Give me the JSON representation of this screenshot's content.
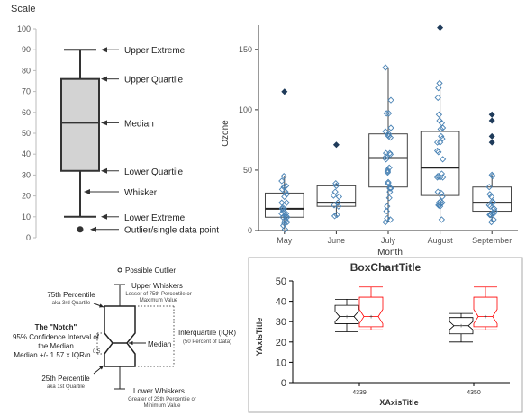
{
  "chart_data": [
    {
      "type": "box",
      "panel": "top-left",
      "title": "Scale",
      "ylim": [
        0,
        100
      ],
      "yticks": [
        0,
        10,
        20,
        30,
        40,
        50,
        60,
        70,
        80,
        90,
        100
      ],
      "box": {
        "min": 10,
        "q1": 32,
        "median": 55,
        "q3": 76,
        "max": 90,
        "outlier": 4
      },
      "annotations": [
        {
          "label": "Upper Extreme",
          "y": 90
        },
        {
          "label": "Upper Quartile",
          "y": 76
        },
        {
          "label": "Median",
          "y": 55
        },
        {
          "label": "Lower Quartile",
          "y": 32
        },
        {
          "label": "Whisker",
          "y": 22
        },
        {
          "label": "Lower Extreme",
          "y": 10
        },
        {
          "label": "Outlier/single data point",
          "y": 4
        }
      ]
    },
    {
      "type": "box",
      "panel": "top-right",
      "xlabel": "Month",
      "ylabel": "Ozone",
      "ylim": [
        0,
        170
      ],
      "yticks": [
        0,
        50,
        100,
        150
      ],
      "categories": [
        "May",
        "June",
        "July",
        "August",
        "September"
      ],
      "boxes": [
        {
          "min": 1,
          "q1": 11,
          "median": 18,
          "q3": 31,
          "max": 45,
          "outliers": [
            115
          ]
        },
        {
          "min": 12,
          "q1": 20,
          "median": 23,
          "q3": 37,
          "max": 39,
          "outliers": [
            71
          ]
        },
        {
          "min": 7,
          "q1": 36,
          "median": 60,
          "q3": 80,
          "max": 135,
          "outliers": []
        },
        {
          "min": 9,
          "q1": 29,
          "median": 52,
          "q3": 82,
          "max": 122,
          "outliers": [
            168
          ]
        },
        {
          "min": 7,
          "q1": 16,
          "median": 23,
          "q3": 36,
          "max": 46,
          "outliers": [
            96,
            78,
            73,
            91
          ]
        }
      ],
      "points": [
        [
          41,
          36,
          12,
          18,
          28,
          23,
          19,
          8,
          7,
          16,
          11,
          14,
          18,
          14,
          34,
          6,
          30,
          11,
          1,
          11,
          4,
          32,
          23,
          45,
          37
        ],
        [
          29,
          39,
          23,
          21,
          37,
          20,
          12,
          13,
          28,
          32
        ],
        [
          135,
          49,
          32,
          64,
          40,
          77,
          97,
          97,
          85,
          10,
          27,
          7,
          48,
          35,
          61,
          79,
          63,
          16,
          80,
          108,
          20,
          52,
          82,
          50,
          64,
          59,
          39,
          9,
          16,
          78,
          35
        ],
        [
          66,
          122,
          89,
          110,
          44,
          28,
          65,
          22,
          59,
          23,
          31,
          44,
          21,
          9,
          45,
          73,
          76,
          118,
          84,
          85,
          96,
          78,
          73,
          91,
          47,
          32,
          20,
          23,
          21,
          24,
          44
        ],
        [
          21,
          28,
          9,
          13,
          46,
          18,
          13,
          24,
          16,
          13,
          23,
          36,
          7,
          14,
          30,
          14,
          18,
          20,
          45
        ]
      ]
    },
    {
      "type": "box",
      "panel": "bottom-left",
      "annotations": {
        "outlier": "Possible Outlier",
        "upper_whiskers": "Upper Whiskers",
        "upper_whiskers_sub": "Lesser of 75th Percentile or Maximum Value",
        "p75": "75th Percentile",
        "p75_sub": "aka 3rd Quartile",
        "notch_title": "The \"Notch\"",
        "notch_1": "95% Confidence Interval of",
        "notch_2": "the Median",
        "notch_3": "Median +/- 1.57 x IQR/n",
        "notch_exp": "0.5",
        "median": "Median",
        "iqr": "Interquartile (IQR)",
        "iqr_sub": "(50 Percent of Data)",
        "p25": "25th Percentile",
        "p25_sub": "aka 1st Quartile",
        "lower_whiskers": "Lower Whiskers",
        "lower_whiskers_sub": "Greater of 25th Percentile or Minimum Value"
      }
    },
    {
      "type": "box",
      "panel": "bottom-right",
      "title": "BoxChartTitle",
      "xlabel": "XAxisTitle",
      "ylabel": "YAxisTitle",
      "ylim": [
        0,
        50
      ],
      "yticks": [
        0,
        10,
        20,
        30,
        40,
        50
      ],
      "categories": [
        "4339",
        "4350"
      ],
      "series": [
        {
          "color": "#000000",
          "boxes": [
            {
              "min": 25,
              "q1": 29,
              "median": 32.5,
              "q3": 38,
              "max": 41,
              "notch": [
                30,
                35
              ],
              "mean": 32.5
            },
            {
              "min": 20,
              "q1": 24,
              "median": 28,
              "q3": 32,
              "max": 34,
              "notch": [
                26,
                30
              ],
              "mean": 28
            }
          ]
        },
        {
          "color": "#ff0000",
          "boxes": [
            {
              "min": 26,
              "q1": 27.5,
              "median": 32.5,
              "q3": 42,
              "max": 47,
              "notch": [
                29,
                36
              ],
              "mean": 32.5
            },
            {
              "min": 26,
              "q1": 27.5,
              "median": 32.5,
              "q3": 42,
              "max": 47,
              "notch": [
                29,
                36
              ],
              "mean": 32.5
            }
          ]
        }
      ]
    }
  ]
}
